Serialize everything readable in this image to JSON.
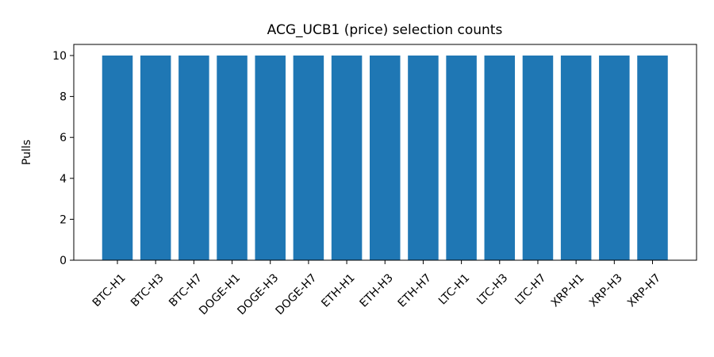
{
  "chart_data": {
    "type": "bar",
    "title": "ACG_UCB1 (price) selection counts",
    "xlabel": "",
    "ylabel": "Pulls",
    "categories": [
      "BTC-H1",
      "BTC-H3",
      "BTC-H7",
      "DOGE-H1",
      "DOGE-H3",
      "DOGE-H7",
      "ETH-H1",
      "ETH-H3",
      "ETH-H7",
      "LTC-H1",
      "LTC-H3",
      "LTC-H7",
      "XRP-H1",
      "XRP-H3",
      "XRP-H7"
    ],
    "values": [
      10,
      10,
      10,
      10,
      10,
      10,
      10,
      10,
      10,
      10,
      10,
      10,
      10,
      10,
      10
    ],
    "ylim": [
      0,
      10.5
    ],
    "yticks": [
      "0",
      "2",
      "4",
      "6",
      "8",
      "10"
    ],
    "bar_color": "#1f77b4",
    "grid": false,
    "legend": "none"
  }
}
